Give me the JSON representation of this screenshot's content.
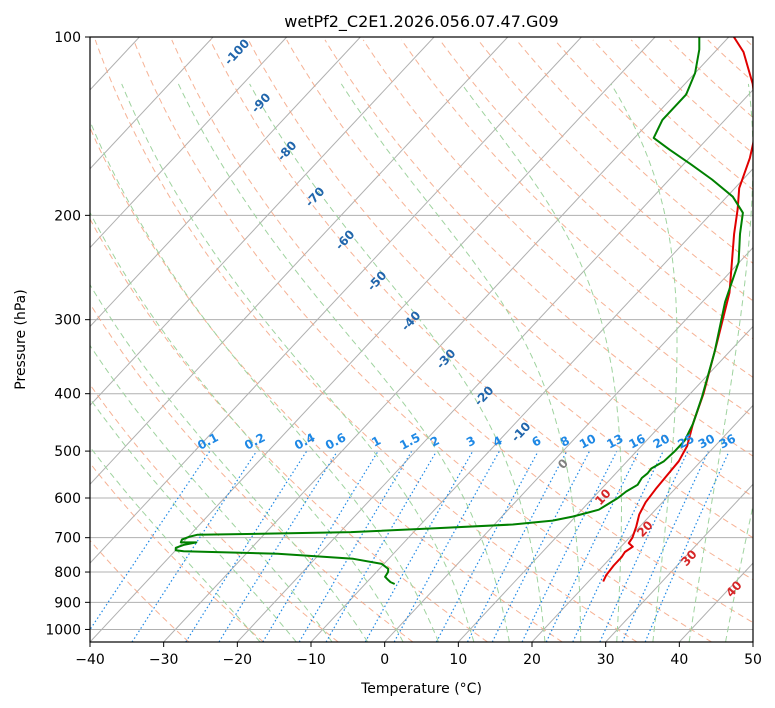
{
  "chart_data": {
    "type": "line",
    "chart_kind": "skew-t log-p diagram",
    "title": "wetPf2_C2E1.2026.056.07.47.G09",
    "xlabel": "Temperature (°C)",
    "ylabel": "Pressure (hPa)",
    "xlim": [
      -40,
      50
    ],
    "ylim": [
      1050,
      100
    ],
    "y_scale": "log",
    "grid": true,
    "x_ticks": [
      -40,
      -30,
      -20,
      -10,
      0,
      10,
      20,
      30,
      40,
      50
    ],
    "x_tick_labels": [
      "−40",
      "−30",
      "−20",
      "−10",
      "0",
      "10",
      "20",
      "30",
      "40",
      "50"
    ],
    "y_ticks": [
      1000,
      900,
      800,
      700,
      600,
      500,
      400,
      300,
      200,
      100
    ],
    "y_tick_labels": [
      "1000",
      "900",
      "800",
      "700",
      "600",
      "500",
      "400",
      "300",
      "200",
      "100"
    ],
    "series": [
      {
        "color": "#e00000",
        "points": [
          [
            22.0,
            830
          ],
          [
            21.6,
            810
          ],
          [
            21.4,
            780
          ],
          [
            21.4,
            755
          ],
          [
            21.2,
            740
          ],
          [
            21.6,
            725
          ],
          [
            20.6,
            715
          ],
          [
            20.4,
            700
          ],
          [
            19.5,
            670
          ],
          [
            18.4,
            640
          ],
          [
            17.7,
            610
          ],
          [
            17.4,
            580
          ],
          [
            17.2,
            550
          ],
          [
            17.0,
            520
          ],
          [
            16.2,
            490
          ],
          [
            14.2,
            450
          ],
          [
            11.8,
            400
          ],
          [
            7.3,
            330
          ],
          [
            2.5,
            270
          ],
          [
            -4.3,
            215
          ],
          [
            -7.0,
            195
          ],
          [
            -9.4,
            180
          ],
          [
            -11.8,
            160
          ],
          [
            -15.1,
            140
          ],
          [
            -20.8,
            120
          ],
          [
            -26.1,
            106
          ],
          [
            -29.3,
            100
          ]
        ]
      },
      {
        "color": "#008000",
        "points": [
          [
            -6.0,
            838
          ],
          [
            -6.8,
            832
          ],
          [
            -7.4,
            825
          ],
          [
            -8.2,
            815
          ],
          [
            -8.4,
            800
          ],
          [
            -8.8,
            790
          ],
          [
            -10.3,
            775
          ],
          [
            -14.8,
            760
          ],
          [
            -25.7,
            745
          ],
          [
            -38.8,
            738
          ],
          [
            -40.0,
            735
          ],
          [
            -40.3,
            728
          ],
          [
            -39.6,
            720
          ],
          [
            -38.2,
            713
          ],
          [
            -40.3,
            713
          ],
          [
            -40.5,
            705
          ],
          [
            -39.8,
            697
          ],
          [
            -39.0,
            692
          ],
          [
            -32.4,
            690
          ],
          [
            -18.5,
            685
          ],
          [
            -7.5,
            675
          ],
          [
            2.5,
            665
          ],
          [
            7.4,
            655
          ],
          [
            9.6,
            645
          ],
          [
            10.9,
            637
          ],
          [
            12.3,
            628
          ],
          [
            12.8,
            615
          ],
          [
            13.4,
            600
          ],
          [
            13.7,
            585
          ],
          [
            14.4,
            570
          ],
          [
            14.1,
            555
          ],
          [
            14.3,
            545
          ],
          [
            14.2,
            535
          ],
          [
            15.0,
            520
          ],
          [
            15.2,
            500
          ],
          [
            15.2,
            480
          ],
          [
            14.2,
            450
          ],
          [
            12.0,
            405
          ],
          [
            8.0,
            340
          ],
          [
            3.1,
            280
          ],
          [
            -0.1,
            240
          ],
          [
            -3.5,
            215
          ],
          [
            -5.8,
            198
          ],
          [
            -9.2,
            186
          ],
          [
            -14.2,
            174
          ],
          [
            -19.0,
            164
          ],
          [
            -23.7,
            155
          ],
          [
            -27.4,
            148
          ],
          [
            -28.5,
            138
          ],
          [
            -28.5,
            125
          ],
          [
            -30.0,
            115
          ],
          [
            -32.4,
            105
          ],
          [
            -34.0,
            100
          ]
        ]
      }
    ],
    "mixing_ratio_labels": [
      "0.1",
      "0.2",
      "0.4",
      "0.6",
      "1",
      "1.5",
      "2",
      "3",
      "4",
      "6",
      "8",
      "10",
      "13",
      "16",
      "20",
      "25",
      "30",
      "36"
    ],
    "isotherm_labels": [
      "-100",
      "-90",
      "-80",
      "-70",
      "-60",
      "-50",
      "-40",
      "-30",
      "-20",
      "-10",
      "0",
      "10",
      "20",
      "30",
      "40"
    ],
    "overlay_colors": {
      "grid": "#b0b0b0",
      "dry_adiabats": "#f4a582",
      "moist_adiabats": "#9fd39f",
      "mixing_ratio": "#1e88e5",
      "mixing_ratio_label": "#1e88e5",
      "cold_labels": "#2166ac",
      "warm_labels": "#d62728",
      "zero_label": "#808080",
      "frame": "#000000"
    }
  }
}
